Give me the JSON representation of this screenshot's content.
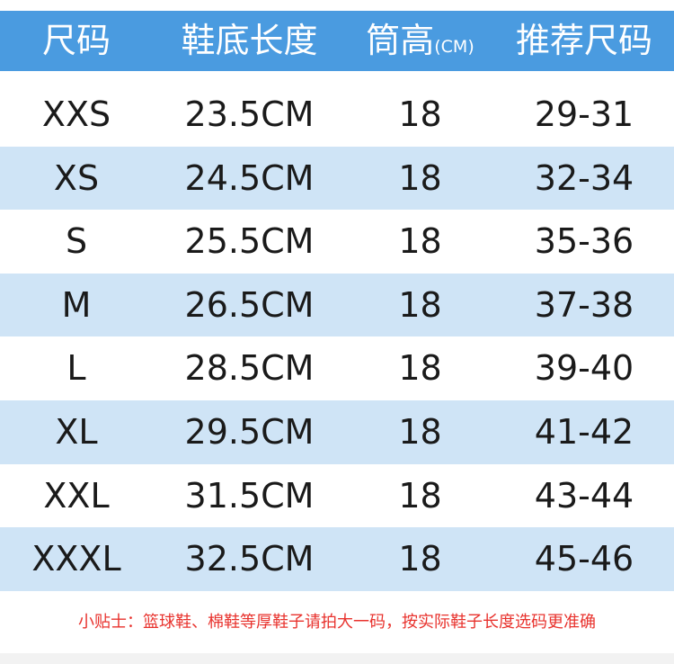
{
  "header": {
    "col_size": "尺码",
    "col_length": "鞋底长度",
    "col_height": "筒高",
    "col_height_unit": "(CM)",
    "col_recommend": "推荐尺码"
  },
  "rows": [
    {
      "size": "XXS",
      "length": "23.5CM",
      "height": "18",
      "recommend": "29-31"
    },
    {
      "size": "XS",
      "length": "24.5CM",
      "height": "18",
      "recommend": "32-34"
    },
    {
      "size": "S",
      "length": "25.5CM",
      "height": "18",
      "recommend": "35-36"
    },
    {
      "size": "M",
      "length": "26.5CM",
      "height": "18",
      "recommend": "37-38"
    },
    {
      "size": "L",
      "length": "28.5CM",
      "height": "18",
      "recommend": "39-40"
    },
    {
      "size": "XL",
      "length": "29.5CM",
      "height": "18",
      "recommend": "41-42"
    },
    {
      "size": "XXL",
      "length": "31.5CM",
      "height": "18",
      "recommend": "43-44"
    },
    {
      "size": "XXXL",
      "length": "32.5CM",
      "height": "18",
      "recommend": "45-46"
    }
  ],
  "note": "小贴士：篮球鞋、棉鞋等厚鞋子请拍大一码，按实际鞋子长度选码更准确",
  "colors": {
    "header_bg": "#4a9be0",
    "row_shade": "#cfe4f6",
    "note_text": "#e8322d"
  }
}
